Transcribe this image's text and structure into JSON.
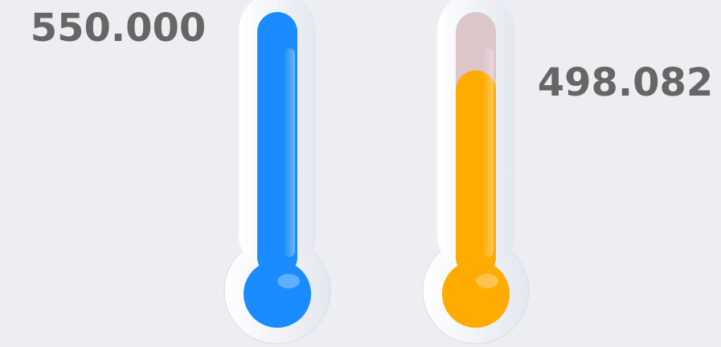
{
  "chart_data": {
    "type": "thermometer",
    "values": [
      550,
      498.082
    ],
    "value_labels": [
      "550.000",
      "498.082"
    ],
    "colors": [
      "#1a8cff",
      "#ffab00"
    ],
    "ylim": [
      325,
      550
    ]
  }
}
